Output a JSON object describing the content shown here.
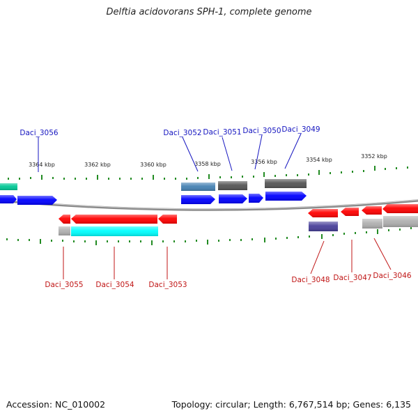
{
  "title": "Delftia acidovorans SPH-1, complete genome",
  "footer": {
    "accession": "Accession: NC_010002",
    "summary": "Topology: circular; Length: 6,767,514 bp; Genes: 6,135"
  },
  "colors": {
    "backbone": "#8a8a8a",
    "forward_label": "#1515c0",
    "reverse_label": "#c01515",
    "tick": "#228b22",
    "forward_gene": "#0000ff",
    "reverse_gene": "#ff0000",
    "cyan_feature": "#00ffff",
    "steelblue_feature": "#4682b4",
    "darkgray_feature": "#555555",
    "lightgray_feature": "#b0b0b0",
    "slateblue_feature": "#48409a",
    "green_feature": "#00c896"
  },
  "scale_labels": [
    "3364 kbp",
    "3362 kbp",
    "3360 kbp",
    "3358 kbp",
    "3356 kbp",
    "3354 kbp",
    "3352 kbp"
  ],
  "forward_genes": [
    "Daci_3056",
    "Daci_3052",
    "Daci_3051",
    "Daci_3050",
    "Daci_3049"
  ],
  "reverse_genes": [
    "Daci_3055",
    "Daci_3054",
    "Daci_3053",
    "Daci_3048",
    "Daci_3047",
    "Daci_3046"
  ]
}
